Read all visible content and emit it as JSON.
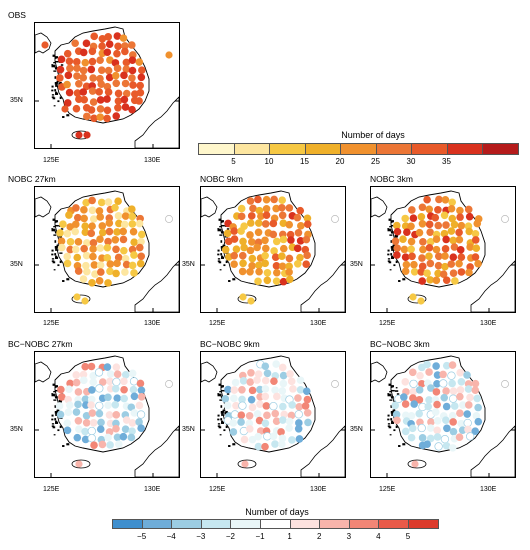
{
  "panels": {
    "obs": {
      "title": "OBS"
    },
    "nobc27": {
      "title": "NOBC 27km"
    },
    "nobc9": {
      "title": "NOBC 9km"
    },
    "nobc3": {
      "title": "NOBC 3km"
    },
    "bc27": {
      "title": "BC−NOBC 27km"
    },
    "bc9": {
      "title": "BC−NOBC 9km"
    },
    "bc3": {
      "title": "BC−NOBC 3km"
    }
  },
  "axes": {
    "lat_label": "35N",
    "lon_labels": [
      "125E",
      "130E"
    ]
  },
  "colorbar_days": {
    "title": "Number of days",
    "labels": [
      "5",
      "10",
      "15",
      "20",
      "25",
      "30",
      "35"
    ],
    "colors": [
      "#fff7cc",
      "#fde6a0",
      "#f6c844",
      "#efb02a",
      "#f0912e",
      "#ec7636",
      "#e85a2a",
      "#d9311e",
      "#b51b1b"
    ]
  },
  "colorbar_diff": {
    "title": "Number of days",
    "labels": [
      "−5",
      "−4",
      "−3",
      "−2",
      "−1",
      "1",
      "2",
      "3",
      "4",
      "5"
    ],
    "colors": [
      "#3f8fce",
      "#6fadd9",
      "#9ccde3",
      "#c6e7f0",
      "#e9f6f8",
      "#ffffff",
      "#fde2df",
      "#f8b4ab",
      "#f28676",
      "#e95a49",
      "#dc3b2c"
    ]
  }
}
